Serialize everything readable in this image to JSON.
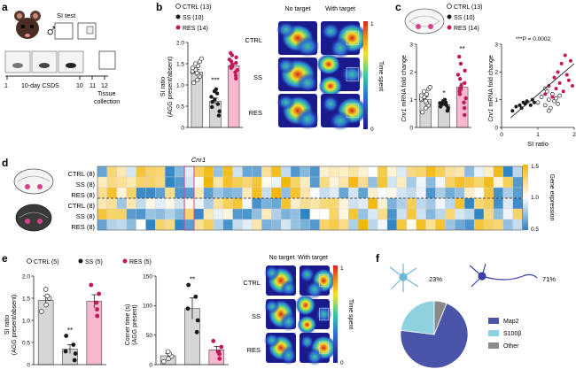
{
  "colors": {
    "ctrl_fill": "#ffffff",
    "ss_fill": "#1a1a1a",
    "res_fill": "#c2185b",
    "res_bar": "#f6b7cf",
    "grey_bar": "#d6d6d6",
    "map2": "#4a54a8",
    "s100b": "#8ed1df",
    "other": "#8a8a8a",
    "heat_high": "#f2b705",
    "heat_mid": "#ffffff",
    "heat_low": "#2b82c4",
    "cnr1_text": "#d0479b"
  },
  "panels": {
    "a": {
      "label": "a",
      "si_test": "SI test",
      "csds": "10-day CSDS",
      "day1": "1",
      "day10": "10",
      "day11": "11",
      "day12": "12",
      "tissue": "Tissue",
      "collection": "collection",
      "male_symbol": "♂"
    },
    "b": {
      "label": "b",
      "legend": [
        "CTRL (13)",
        "SS (10)",
        "RES (14)"
      ],
      "ylabel1": "SI ratio",
      "ylabel2": "(AGG present/absent)",
      "sig": "***",
      "heat_headers": [
        "No target",
        "With target"
      ],
      "heat_rows": [
        "CTRL",
        "SS",
        "RES"
      ],
      "colorbar_title": "Time spent",
      "colorbar_max": "1",
      "colorbar_min": "0"
    },
    "c": {
      "label": "c",
      "legend": [
        "CTRL (13)",
        "SS (10)",
        "RES (14)"
      ],
      "ylabel_gene": "Cnr1",
      "ylabel_rest": " mRNA fold change",
      "sig_ss": "*",
      "sig_res": "**",
      "pvalue": "***P = 0.0002",
      "xlabel": "SI ratio"
    },
    "d": {
      "label": "d",
      "rows": [
        "CTRL (8)",
        "SS (8)",
        "RES (8)",
        "CTRL (8)",
        "SS (8)",
        "RES (8)"
      ],
      "cnr1": "Cnr1",
      "colorbar_title": "Gene expression",
      "cb_ticks": [
        "1.5",
        "1.0",
        "0.5"
      ]
    },
    "e": {
      "label": "e",
      "legend": [
        "CTRL (5)",
        "SS (5)",
        "RES (5)"
      ],
      "si_ylabel1": "SI ratio",
      "si_ylabel2": "(AGG present/absent)",
      "si_sig": "**",
      "corner_ylabel1": "Corner time (s)",
      "corner_ylabel2": "(AGG present)",
      "corner_sig": "**",
      "heat_headers": [
        "No target",
        "With target"
      ],
      "heat_rows": [
        "CTRL",
        "SS",
        "RES"
      ],
      "colorbar_title": "Time spent",
      "colorbar_max": "1",
      "colorbar_min": "0"
    },
    "f": {
      "label": "f",
      "astro_pct": "23%",
      "neuron_pct": "71%",
      "legend": [
        "Map2",
        "S100β",
        "Other"
      ]
    }
  },
  "chart_data": [
    {
      "id": "b_si_ratio",
      "type": "bar",
      "title": "",
      "categories": [
        "CTRL",
        "SS",
        "RES"
      ],
      "values": [
        1.3,
        0.62,
        1.45
      ],
      "errors": [
        0.06,
        0.07,
        0.05
      ],
      "points": [
        [
          1.05,
          1.12,
          1.2,
          1.25,
          1.28,
          1.3,
          1.33,
          1.36,
          1.4,
          1.45,
          1.5,
          1.55,
          1.62
        ],
        [
          0.28,
          0.38,
          0.48,
          0.55,
          0.6,
          0.66,
          0.72,
          0.8,
          0.85,
          0.9
        ],
        [
          1.15,
          1.22,
          1.3,
          1.35,
          1.4,
          1.42,
          1.45,
          1.48,
          1.52,
          1.55,
          1.6,
          1.65,
          1.7,
          1.75
        ]
      ],
      "ylabel": "SI ratio (AGG present/absent)",
      "ylim": [
        0,
        2.0
      ],
      "yticks": [
        0,
        0.5,
        1.0,
        1.5,
        2.0
      ],
      "ytick_labels": [
        "0",
        "0.5",
        "1.0",
        "1.5",
        "2.0"
      ]
    },
    {
      "id": "c_cnr1_fold",
      "type": "bar",
      "categories": [
        "CTRL",
        "SS",
        "RES"
      ],
      "values": [
        1.0,
        0.82,
        1.45
      ],
      "errors": [
        0.1,
        0.05,
        0.14
      ],
      "points": [
        [
          0.55,
          0.7,
          0.8,
          0.88,
          0.95,
          1.0,
          1.05,
          1.1,
          1.15,
          1.2,
          1.3,
          1.38,
          1.45
        ],
        [
          0.6,
          0.7,
          0.75,
          0.8,
          0.82,
          0.85,
          0.88,
          0.9,
          0.95,
          1.0
        ],
        [
          0.45,
          0.7,
          0.9,
          1.05,
          1.2,
          1.3,
          1.4,
          1.5,
          1.6,
          1.75,
          1.9,
          2.05,
          2.3,
          2.55
        ]
      ],
      "ylabel": "Cnr1 mRNA fold change",
      "ylim": [
        0,
        3
      ],
      "yticks": [
        0,
        1,
        2,
        3
      ],
      "ytick_labels": [
        "0",
        "1",
        "2",
        "3"
      ]
    },
    {
      "id": "c_scatter",
      "type": "scatter",
      "xlabel": "SI ratio",
      "ylabel": "",
      "xlim": [
        0,
        2
      ],
      "ylim": [
        0,
        3
      ],
      "xticks": [
        0,
        1,
        2
      ],
      "xtick_labels": [
        "0",
        "1",
        "2"
      ],
      "yticks": [
        0,
        1,
        2,
        3
      ],
      "ytick_labels": [
        "0",
        "1",
        "2",
        "3"
      ],
      "series": [
        {
          "name": "CTRL",
          "x": [
            1.0,
            1.1,
            1.2,
            1.25,
            1.3,
            1.35,
            1.4,
            1.45,
            1.5,
            1.55,
            1.2,
            1.3,
            1.6
          ],
          "y": [
            0.9,
            1.1,
            0.8,
            1.3,
            1.0,
            0.7,
            1.2,
            0.95,
            1.05,
            0.85,
            1.4,
            0.6,
            1.15
          ]
        },
        {
          "name": "SS",
          "x": [
            0.3,
            0.4,
            0.5,
            0.55,
            0.6,
            0.65,
            0.7,
            0.8,
            0.85,
            0.9
          ],
          "y": [
            0.6,
            0.75,
            0.8,
            0.7,
            0.9,
            0.85,
            0.95,
            0.8,
            1.0,
            0.9
          ]
        },
        {
          "name": "RES",
          "x": [
            1.2,
            1.3,
            1.4,
            1.45,
            1.5,
            1.55,
            1.6,
            1.65,
            1.7,
            1.75,
            1.8,
            1.85,
            1.9,
            1.95
          ],
          "y": [
            1.2,
            1.5,
            1.1,
            1.8,
            1.4,
            2.0,
            1.6,
            2.3,
            1.3,
            2.6,
            1.9,
            1.7,
            2.4,
            1.5
          ]
        }
      ],
      "fit_line": {
        "x": [
          0.25,
          2.0
        ],
        "y": [
          0.35,
          2.3
        ]
      }
    },
    {
      "id": "d_heatmap",
      "type": "heatmap",
      "rows": [
        "CTRL (8)",
        "SS (8)",
        "RES (8)",
        "CTRL (8)",
        "SS (8)",
        "RES (8)"
      ],
      "n_cols": 44,
      "highlight_col": 9,
      "value_range": [
        0.5,
        1.5
      ]
    },
    {
      "id": "e_si_ratio",
      "type": "bar",
      "categories": [
        "CTRL",
        "SS",
        "RES"
      ],
      "values": [
        1.45,
        0.35,
        1.43
      ],
      "errors": [
        0.1,
        0.1,
        0.15
      ],
      "points": [
        [
          1.2,
          1.35,
          1.5,
          1.55,
          1.7
        ],
        [
          0.1,
          0.25,
          0.3,
          0.45,
          0.65
        ],
        [
          1.1,
          1.25,
          1.4,
          1.6,
          1.8
        ]
      ],
      "ylabel": "SI ratio (AGG present/absent)",
      "ylim": [
        0,
        2.0
      ],
      "yticks": [
        0,
        0.5,
        1.0,
        1.5,
        2.0
      ],
      "ytick_labels": [
        "0",
        "0.5",
        "1.0",
        "1.5",
        "2.0"
      ]
    },
    {
      "id": "e_corner_time",
      "type": "bar",
      "categories": [
        "CTRL",
        "SS",
        "RES"
      ],
      "values": [
        15,
        95,
        25
      ],
      "errors": [
        4,
        18,
        6
      ],
      "points": [
        [
          5,
          10,
          14,
          18,
          22
        ],
        [
          55,
          75,
          95,
          115,
          135
        ],
        [
          10,
          18,
          22,
          30,
          40
        ]
      ],
      "ylabel": "Corner time (s) (AGG present)",
      "ylim": [
        0,
        150
      ],
      "yticks": [
        0,
        50,
        100,
        150
      ],
      "ytick_labels": [
        "0",
        "50",
        "100",
        "150"
      ]
    },
    {
      "id": "f_pie",
      "type": "pie",
      "labels": [
        "Map2",
        "S100β",
        "Other"
      ],
      "values": [
        71,
        23,
        6
      ]
    }
  ]
}
